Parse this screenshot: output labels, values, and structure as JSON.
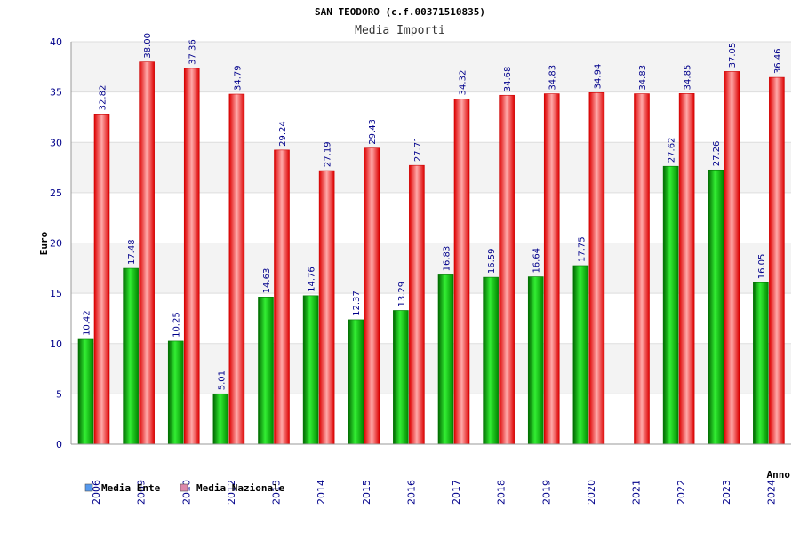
{
  "chart_data": {
    "type": "bar",
    "title": "SAN TEODORO (c.f.00371510835)",
    "subtitle": "Media Importi",
    "ylabel": "Euro",
    "xlabel": "Anno",
    "ylim": [
      0,
      40
    ],
    "yticks": [
      "0",
      "5",
      "10",
      "15",
      "20",
      "25",
      "30",
      "35",
      "40"
    ],
    "grid": true,
    "legend_position": "bottom-left",
    "categories": [
      "2006",
      "2009",
      "2010",
      "2012",
      "2013",
      "2014",
      "2015",
      "2016",
      "2017",
      "2018",
      "2019",
      "2020",
      "2021",
      "2022",
      "2023",
      "2024"
    ],
    "series": [
      {
        "name": "Media Ente",
        "color": "#00cc00",
        "legend_color": "#5599ee",
        "values": [
          10.42,
          17.48,
          10.25,
          5.01,
          14.63,
          14.76,
          12.37,
          13.29,
          16.83,
          16.59,
          16.64,
          17.75,
          null,
          27.62,
          27.26,
          16.05
        ],
        "labels": [
          "10.42",
          "17.48",
          "10.25",
          "5.01",
          "14.63",
          "14.76",
          "12.37",
          "13.29",
          "16.83",
          "16.59",
          "16.64",
          "17.75",
          "",
          "27.62",
          "27.26",
          "16.05"
        ]
      },
      {
        "name": "Media Nazionale",
        "color": "#ee1111",
        "legend_color": "#dd88aa",
        "values": [
          32.82,
          38.0,
          37.36,
          34.79,
          29.24,
          27.19,
          29.43,
          27.71,
          34.32,
          34.68,
          34.83,
          34.94,
          34.83,
          34.85,
          37.05,
          36.46
        ],
        "labels": [
          "32.82",
          "38.00",
          "37.36",
          "34.79",
          "29.24",
          "27.19",
          "29.43",
          "27.71",
          "34.32",
          "34.68",
          "34.83",
          "34.94",
          "34.83",
          "34.85",
          "37.05",
          "36.46"
        ]
      }
    ]
  }
}
